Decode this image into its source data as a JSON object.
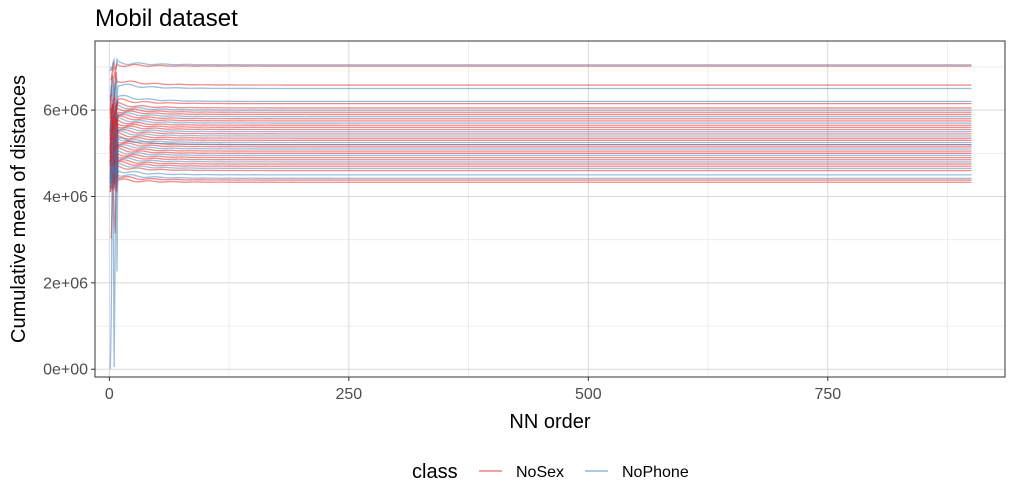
{
  "chart_data": {
    "type": "line",
    "title": "Mobil dataset",
    "xlabel": "NN order",
    "ylabel": "Cumulative mean of distances",
    "xlim": [
      -15,
      935
    ],
    "ylim": [
      -180000,
      7600000
    ],
    "x_ticks": [
      0,
      250,
      500,
      750
    ],
    "x_tick_labels": [
      "0",
      "250",
      "500",
      "750"
    ],
    "x_minor_ticks": [
      125,
      375,
      625,
      875
    ],
    "y_ticks": [
      0,
      2000000,
      4000000,
      6000000
    ],
    "y_tick_labels": [
      "0e+00",
      "2e+06",
      "4e+06",
      "6e+06"
    ],
    "y_minor_ticks": [
      1000000,
      3000000,
      5000000,
      7000000
    ],
    "x_max": 900,
    "grid": true,
    "legend": {
      "title": "class",
      "position": "bottom",
      "entries": [
        {
          "name": "NoSex",
          "color": "#e41a1c"
        },
        {
          "name": "NoPhone",
          "color": "#377eb8"
        }
      ]
    },
    "series": [
      {
        "class": "NoPhone",
        "final": 7050000,
        "start": 6900000,
        "peak": 7200000
      },
      {
        "class": "NoSex",
        "final": 7020000,
        "start": 6700000,
        "peak": 7100000
      },
      {
        "class": "NoSex",
        "final": 6580000,
        "start": 6300000,
        "peak": 6900000
      },
      {
        "class": "NoPhone",
        "final": 6500000,
        "start": 6200000,
        "peak": 6800000
      },
      {
        "class": "NoPhone",
        "final": 6200000,
        "start": 6000000,
        "peak": 6600000
      },
      {
        "class": "NoSex",
        "final": 6150000,
        "start": 5900000,
        "peak": 6400000
      },
      {
        "class": "NoSex",
        "final": 6050000,
        "start": 5800000,
        "peak": 6300000
      },
      {
        "class": "NoPhone",
        "final": 6000000,
        "start": 5700000,
        "peak": 6250000
      },
      {
        "class": "NoSex",
        "final": 5950000,
        "start": 5600000,
        "peak": 6200000
      },
      {
        "class": "NoSex",
        "final": 5900000,
        "start": 5500000,
        "peak": 6150000
      },
      {
        "class": "NoPhone",
        "final": 5850000,
        "start": 5500000,
        "peak": 6100000
      },
      {
        "class": "NoSex",
        "final": 5800000,
        "start": 5400000,
        "peak": 6050000
      },
      {
        "class": "NoSex",
        "final": 5750000,
        "start": 5300000,
        "peak": 6000000
      },
      {
        "class": "NoPhone",
        "final": 5700000,
        "start": 5300000,
        "peak": 5950000
      },
      {
        "class": "NoSex",
        "final": 5650000,
        "start": 5200000,
        "peak": 5900000
      },
      {
        "class": "NoSex",
        "final": 5600000,
        "start": 5100000,
        "peak": 5850000
      },
      {
        "class": "NoSex",
        "final": 5550000,
        "start": 5100000,
        "peak": 5800000
      },
      {
        "class": "NoPhone",
        "final": 5500000,
        "start": 5000000,
        "peak": 5750000
      },
      {
        "class": "NoSex",
        "final": 5450000,
        "start": 5000000,
        "peak": 5700000
      },
      {
        "class": "NoPhone",
        "final": 5400000,
        "start": 4900000,
        "peak": 5650000
      },
      {
        "class": "NoSex",
        "final": 5350000,
        "start": 4900000,
        "peak": 5600000
      },
      {
        "class": "NoSex",
        "final": 5300000,
        "start": 4800000,
        "peak": 5550000
      },
      {
        "class": "NoPhone",
        "final": 5250000,
        "start": 4800000,
        "peak": 5500000
      },
      {
        "class": "NoSex",
        "final": 5200000,
        "start": 4700000,
        "peak": 5450000
      },
      {
        "class": "NoSex",
        "final": 5150000,
        "start": 4700000,
        "peak": 5400000
      },
      {
        "class": "NoPhone",
        "final": 5100000,
        "start": 4600000,
        "peak": 5350000
      },
      {
        "class": "NoSex",
        "final": 5050000,
        "start": 4600000,
        "peak": 5300000
      },
      {
        "class": "NoSex",
        "final": 5000000,
        "start": 4500000,
        "peak": 5250000
      },
      {
        "class": "NoPhone",
        "final": 4950000,
        "start": 4500000,
        "peak": 5200000
      },
      {
        "class": "NoSex",
        "final": 4900000,
        "start": 4400000,
        "peak": 5150000
      },
      {
        "class": "NoSex",
        "final": 4850000,
        "start": 4400000,
        "peak": 5100000
      },
      {
        "class": "NoPhone",
        "final": 4800000,
        "start": 4300000,
        "peak": 5050000
      },
      {
        "class": "NoSex",
        "final": 4750000,
        "start": 4300000,
        "peak": 5000000
      },
      {
        "class": "NoSex",
        "final": 4700000,
        "start": 4200000,
        "peak": 4950000
      },
      {
        "class": "NoPhone",
        "final": 4650000,
        "start": 4200000,
        "peak": 4900000
      },
      {
        "class": "NoSex",
        "final": 4600000,
        "start": 4100000,
        "peak": 4850000
      },
      {
        "class": "NoPhone",
        "final": 4500000,
        "start": 4300000,
        "peak": 4800000
      },
      {
        "class": "NoPhone",
        "final": 4420000,
        "start": 4200000,
        "peak": 4700000
      },
      {
        "class": "NoSex",
        "final": 4380000,
        "start": 4100000,
        "peak": 4600000
      },
      {
        "class": "NoSex",
        "final": 4330000,
        "start": 3050000,
        "peak": 4500000
      },
      {
        "class": "NoPhone",
        "final": 5200000,
        "start": 0,
        "peak": 5600000
      }
    ]
  }
}
